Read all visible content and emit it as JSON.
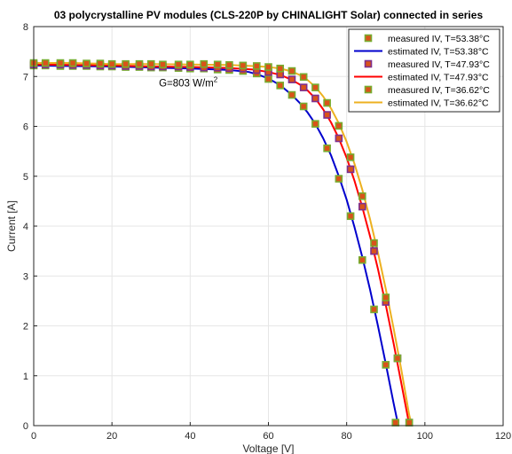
{
  "chart_data": {
    "type": "line",
    "title": "03 polycrystalline PV modules (CLS-220P by CHINALIGHT Solar) connected in series",
    "xlabel": "Voltage [V]",
    "ylabel": "Current [A]",
    "xlim": [
      0,
      120
    ],
    "ylim": [
      0,
      8
    ],
    "xticks": [
      0,
      20,
      40,
      60,
      80,
      100,
      120
    ],
    "yticks": [
      0,
      1,
      2,
      3,
      4,
      5,
      6,
      7,
      8
    ],
    "grid": true,
    "legend_position": "top-right",
    "annotation": {
      "text": "G=803 W/m",
      "superscript": "2",
      "x": 32,
      "y": 6.8
    },
    "series": [
      {
        "name": "measured IV, T=53.38°C",
        "kind": "markers",
        "face_color": "#d95319",
        "edge_color": "#77ac30",
        "points": [
          [
            0,
            7.22
          ],
          [
            3,
            7.22
          ],
          [
            6.8,
            7.21
          ],
          [
            10,
            7.21
          ],
          [
            13.5,
            7.21
          ],
          [
            17,
            7.2
          ],
          [
            20,
            7.2
          ],
          [
            23.5,
            7.19
          ],
          [
            27,
            7.19
          ],
          [
            30,
            7.18
          ],
          [
            33,
            7.18
          ],
          [
            37,
            7.17
          ],
          [
            40,
            7.16
          ],
          [
            43.5,
            7.16
          ],
          [
            47,
            7.14
          ],
          [
            50,
            7.13
          ],
          [
            53.5,
            7.11
          ],
          [
            57,
            7.06
          ],
          [
            60,
            6.95
          ],
          [
            63,
            6.82
          ],
          [
            66,
            6.63
          ],
          [
            69,
            6.4
          ],
          [
            72,
            6.05
          ],
          [
            75,
            5.56
          ],
          [
            78,
            4.95
          ],
          [
            81,
            4.2
          ],
          [
            84,
            3.32
          ],
          [
            87,
            2.33
          ],
          [
            90,
            1.22
          ],
          [
            92.5,
            0.06
          ]
        ]
      },
      {
        "name": "estimated IV, T=53.38°C",
        "kind": "line",
        "color": "#0000cd",
        "points": [
          [
            0,
            7.22
          ],
          [
            10,
            7.21
          ],
          [
            20,
            7.2
          ],
          [
            30,
            7.18
          ],
          [
            40,
            7.16
          ],
          [
            50,
            7.13
          ],
          [
            55,
            7.09
          ],
          [
            58,
            7.02
          ],
          [
            60,
            6.96
          ],
          [
            62,
            6.87
          ],
          [
            64,
            6.76
          ],
          [
            66,
            6.63
          ],
          [
            68,
            6.47
          ],
          [
            70,
            6.28
          ],
          [
            72,
            6.05
          ],
          [
            74,
            5.76
          ],
          [
            76,
            5.42
          ],
          [
            78,
            5.0
          ],
          [
            80,
            4.53
          ],
          [
            82,
            3.98
          ],
          [
            84,
            3.38
          ],
          [
            86,
            2.72
          ],
          [
            88,
            2.0
          ],
          [
            90,
            1.24
          ],
          [
            92,
            0.45
          ],
          [
            93.2,
            0.0
          ]
        ]
      },
      {
        "name": "measured IV, T=47.93°C",
        "kind": "markers",
        "face_color": "#d95319",
        "edge_color": "#7e2f8e",
        "points": [
          [
            0,
            7.24
          ],
          [
            3,
            7.24
          ],
          [
            6.8,
            7.24
          ],
          [
            10,
            7.23
          ],
          [
            13.5,
            7.23
          ],
          [
            17,
            7.22
          ],
          [
            20,
            7.22
          ],
          [
            23.5,
            7.21
          ],
          [
            27,
            7.21
          ],
          [
            30,
            7.2
          ],
          [
            33,
            7.2
          ],
          [
            37,
            7.2
          ],
          [
            40,
            7.19
          ],
          [
            43.5,
            7.18
          ],
          [
            47,
            7.18
          ],
          [
            50,
            7.17
          ],
          [
            53.5,
            7.16
          ],
          [
            57,
            7.13
          ],
          [
            60,
            7.09
          ],
          [
            63,
            7.04
          ],
          [
            66,
            6.94
          ],
          [
            69,
            6.78
          ],
          [
            72,
            6.56
          ],
          [
            75,
            6.23
          ],
          [
            78,
            5.76
          ],
          [
            81,
            5.14
          ],
          [
            84,
            4.39
          ],
          [
            87,
            3.5
          ],
          [
            90,
            2.48
          ],
          [
            93,
            1.35
          ],
          [
            96,
            0.06
          ]
        ]
      },
      {
        "name": "estimated IV, T=47.93°C",
        "kind": "line",
        "color": "#ff0000",
        "points": [
          [
            0,
            7.24
          ],
          [
            10,
            7.23
          ],
          [
            20,
            7.22
          ],
          [
            30,
            7.2
          ],
          [
            40,
            7.19
          ],
          [
            50,
            7.17
          ],
          [
            56,
            7.14
          ],
          [
            60,
            7.09
          ],
          [
            62,
            7.05
          ],
          [
            64,
            7.0
          ],
          [
            66,
            6.93
          ],
          [
            68,
            6.84
          ],
          [
            70,
            6.72
          ],
          [
            72,
            6.56
          ],
          [
            74,
            6.34
          ],
          [
            76,
            6.08
          ],
          [
            78,
            5.76
          ],
          [
            80,
            5.37
          ],
          [
            82,
            4.91
          ],
          [
            84,
            4.38
          ],
          [
            86,
            3.79
          ],
          [
            88,
            3.14
          ],
          [
            90,
            2.42
          ],
          [
            92,
            1.65
          ],
          [
            94,
            0.84
          ],
          [
            96,
            0.02
          ]
        ]
      },
      {
        "name": "measured IV, T=36.62°C",
        "kind": "markers",
        "face_color": "#d95319",
        "edge_color": "#77ac30",
        "points": [
          [
            0,
            7.27
          ],
          [
            3,
            7.27
          ],
          [
            6.8,
            7.27
          ],
          [
            10,
            7.27
          ],
          [
            13.5,
            7.26
          ],
          [
            17,
            7.26
          ],
          [
            20,
            7.25
          ],
          [
            23.5,
            7.25
          ],
          [
            27,
            7.25
          ],
          [
            30,
            7.25
          ],
          [
            33,
            7.24
          ],
          [
            37,
            7.24
          ],
          [
            40,
            7.24
          ],
          [
            43.5,
            7.25
          ],
          [
            47,
            7.24
          ],
          [
            50,
            7.23
          ],
          [
            53.5,
            7.22
          ],
          [
            57,
            7.21
          ],
          [
            60,
            7.19
          ],
          [
            63,
            7.16
          ],
          [
            66,
            7.11
          ],
          [
            69,
            6.99
          ],
          [
            72,
            6.78
          ],
          [
            75,
            6.47
          ],
          [
            78,
            6.01
          ],
          [
            81,
            5.38
          ],
          [
            84,
            4.6
          ],
          [
            87,
            3.66
          ],
          [
            90,
            2.57
          ],
          [
            93,
            1.35
          ],
          [
            96,
            0.06
          ]
        ]
      },
      {
        "name": "estimated IV, T=36.62°C",
        "kind": "line",
        "color": "#edb120",
        "points": [
          [
            0,
            7.27
          ],
          [
            10,
            7.27
          ],
          [
            20,
            7.25
          ],
          [
            30,
            7.25
          ],
          [
            40,
            7.24
          ],
          [
            50,
            7.23
          ],
          [
            56,
            7.21
          ],
          [
            60,
            7.19
          ],
          [
            62,
            7.17
          ],
          [
            64,
            7.14
          ],
          [
            66,
            7.1
          ],
          [
            68,
            7.03
          ],
          [
            70,
            6.93
          ],
          [
            72,
            6.79
          ],
          [
            74,
            6.6
          ],
          [
            76,
            6.36
          ],
          [
            78,
            6.06
          ],
          [
            80,
            5.69
          ],
          [
            82,
            5.25
          ],
          [
            84,
            4.73
          ],
          [
            86,
            4.13
          ],
          [
            88,
            3.47
          ],
          [
            90,
            2.74
          ],
          [
            92,
            1.95
          ],
          [
            94,
            1.11
          ],
          [
            96,
            0.21
          ],
          [
            96.7,
            0.0
          ]
        ]
      }
    ]
  }
}
